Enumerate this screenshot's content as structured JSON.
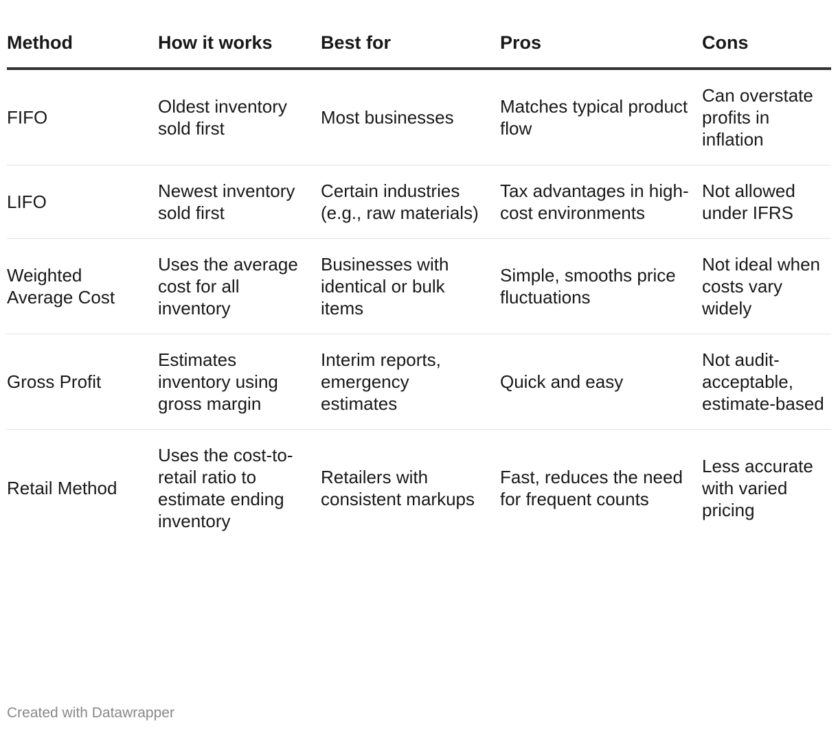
{
  "table": {
    "headers": [
      "Method",
      "How it works",
      "Best for",
      "Pros",
      "Cons"
    ],
    "rows": [
      [
        "FIFO",
        "Oldest inventory sold first",
        "Most businesses",
        "Matches typical product flow",
        "Can overstate profits in inflation"
      ],
      [
        "LIFO",
        "Newest inventory sold first",
        "Certain industries (e.g., raw materials)",
        "Tax advantages in high-cost environments",
        "Not allowed under IFRS"
      ],
      [
        "Weighted Average Cost",
        "Uses the average cost for all inventory",
        "Businesses with identical or bulk items",
        "Simple, smooths price fluctuations",
        "Not ideal when costs vary widely"
      ],
      [
        "Gross Profit",
        "Estimates inventory using gross margin",
        "Interim reports, emergency estimates",
        "Quick and easy",
        "Not audit-acceptable, estimate-based"
      ],
      [
        "Retail Method",
        "Uses the cost-to-retail ratio to estimate ending inventory",
        "Retailers with consistent markups",
        "Fast, reduces the need for frequent counts",
        "Less accurate with varied pricing"
      ]
    ]
  },
  "footer": {
    "credit": "Created with Datawrapper"
  },
  "colors": {
    "text": "#181818",
    "header_rule": "#333333",
    "row_rule": "#e2e2e2",
    "footer_text": "#888888"
  }
}
